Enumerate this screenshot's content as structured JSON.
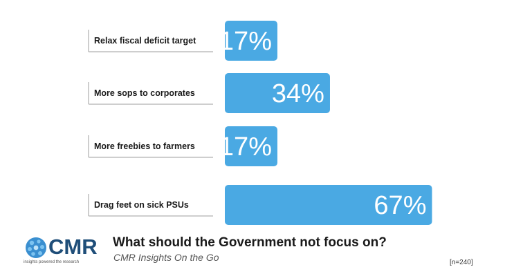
{
  "chart_data": {
    "type": "bar",
    "orientation": "horizontal",
    "categories": [
      "Relax fiscal deficit target",
      "More sops to corporates",
      "More freebies to farmers",
      "Drag feet on sick PSUs"
    ],
    "values": [
      17,
      34,
      17,
      67
    ],
    "value_labels": [
      "17%",
      "34%",
      "17%",
      "67%"
    ],
    "unit": "%",
    "bar_color": "#4aa9e3",
    "grid": false,
    "legend": "none"
  },
  "footer": {
    "logo_text": "CMR",
    "logo_tagline": "insights powered the research",
    "question": "What should the Government not focus on?",
    "subtitle": "CMR Insights On the Go",
    "sample_size": "[n=240]",
    "brand_color": "#1f4e79"
  }
}
